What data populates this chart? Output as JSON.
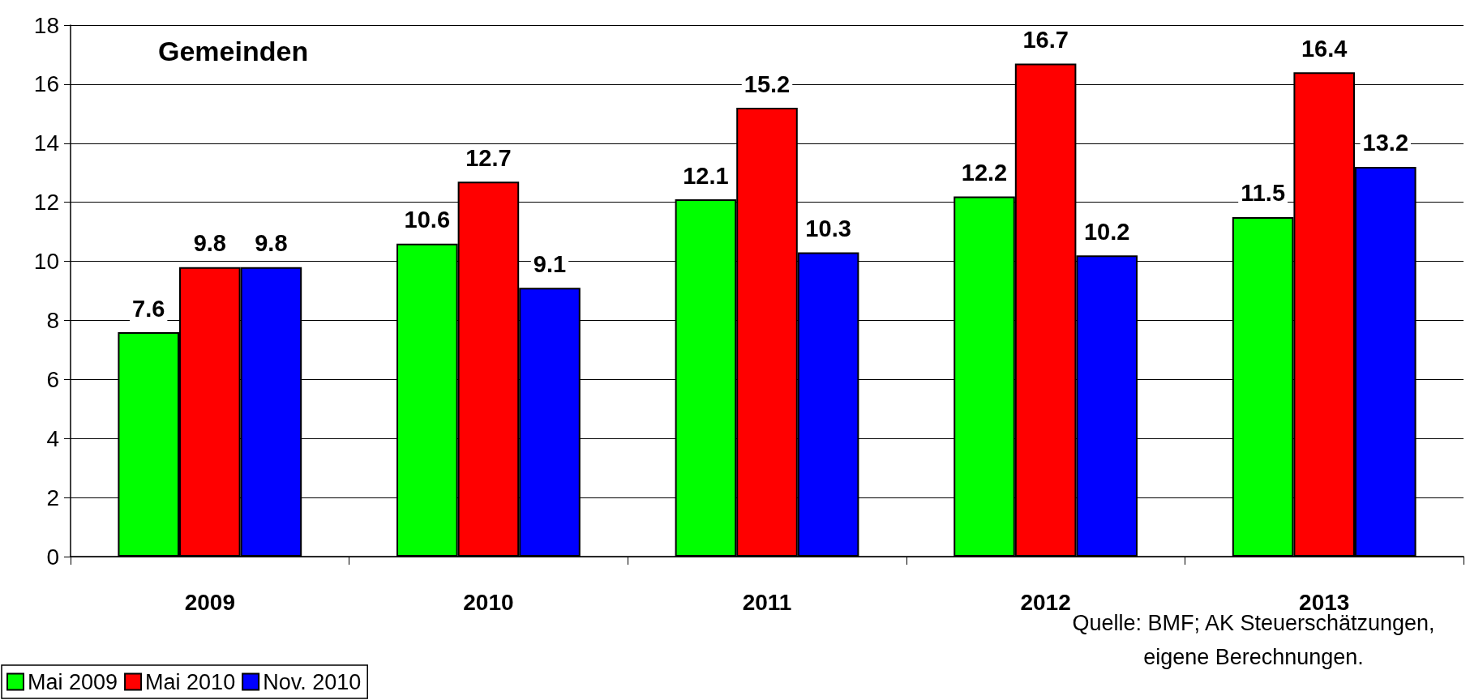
{
  "chart_data": {
    "type": "bar",
    "title": "Gemeinden",
    "categories": [
      "2009",
      "2010",
      "2011",
      "2012",
      "2013"
    ],
    "series": [
      {
        "name": "Mai 2009",
        "color": "#00ff00",
        "values": [
          7.6,
          10.6,
          12.1,
          12.2,
          11.5
        ]
      },
      {
        "name": "Mai 2010",
        "color": "#ff0000",
        "values": [
          9.8,
          12.7,
          15.2,
          16.7,
          16.4
        ]
      },
      {
        "name": "Nov. 2010",
        "color": "#0000ff",
        "values": [
          9.8,
          9.1,
          10.3,
          10.2,
          13.2
        ]
      }
    ],
    "ylim": [
      0,
      18
    ],
    "yticks": [
      0,
      2,
      4,
      6,
      8,
      10,
      12,
      14,
      16,
      18
    ],
    "grid": "y",
    "data_labels": true,
    "legend": "bottom left",
    "annotations": [
      "Quelle: BMF; AK Steuerschätzungen,\neigene Berechnungen."
    ]
  }
}
